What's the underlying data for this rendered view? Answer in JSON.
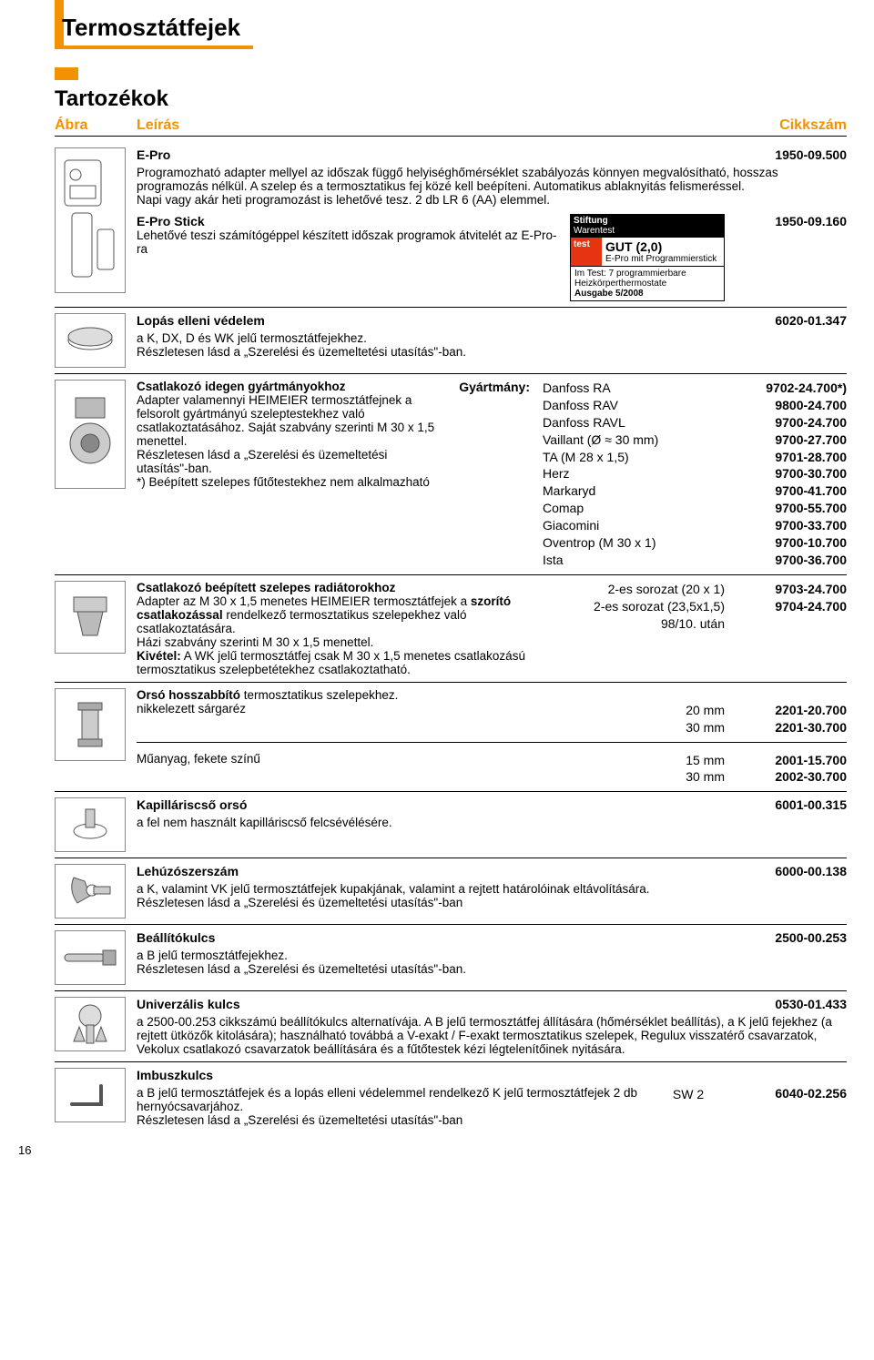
{
  "pageTitle": "Termosztátfejek",
  "sectionTitle": "Tartozékok",
  "head": {
    "abra": "Ábra",
    "leiras": "Leírás",
    "cikk": "Cikkszám"
  },
  "r1": {
    "title": "E-Pro",
    "cikk": "1950-09.500",
    "body": "Programozható adapter mellyel az időszak függő helyiséghőmérséklet szabályozás könnyen megvalósítható, hosszas programozás nélkül. A szelep és a termosztatikus fej közé kell beépíteni. Automatikus ablaknyitás felismeréssel.\nNapi vagy akár heti programozást is lehetővé tesz. 2 db LR 6 (AA) elemmel.",
    "title2": "E-Pro Stick",
    "cikk2": "1950-09.160",
    "body2": "Lehetővé teszi számítógéppel készített időszak programok átvitelét az E-Pro-ra",
    "badge": {
      "l1": "Stiftung",
      "l2": "Warentest",
      "l3": "test",
      "gut": "GUT (2,0)",
      "sub": "E-Pro mit Programmierstick",
      "bot1": "Im Test: 7 programmierbare Heizkörperthermostate",
      "bot2": "Ausgabe 5/2008"
    }
  },
  "r2": {
    "title": "Lopás elleni védelem",
    "cikk": "6020-01.347",
    "body": "a K, DX, D és WK jelű termosztátfejekhez.\nRészletesen lásd a „Szerelési és üzemeltetési utasítás\"-ban."
  },
  "r3": {
    "left": "Csatlakozó idegen gyártmányokhoz\nAdapter valamennyi HEIMEIER termosztátfejnek a felsorolt gyártmányú szeleptestekhez való csatlakoztatásához. Saját szabvány szerinti M 30 x 1,5 menettel.\nRészletesen lásd a „Szerelési és üzemeltetési utasítás\"-ban.\n*) Beépített szelepes fűtőtestekhez nem alkalmazható",
    "gyartmany": "Gyártmány:",
    "brands": [
      "Danfoss RA",
      "Danfoss RAV",
      "Danfoss RAVL",
      "Vaillant (Ø ≈ 30 mm)",
      "TA (M 28 x 1,5)",
      "Herz",
      "Markaryd",
      "Comap",
      "Giacomini",
      "Oventrop (M 30 x 1)",
      "Ista"
    ],
    "codes": [
      "9702-24.700*)",
      "9800-24.700",
      "9700-24.700",
      "9700-27.700",
      "9701-28.700",
      "9700-30.700",
      "9700-41.700",
      "9700-55.700",
      "9700-33.700",
      "9700-10.700",
      "9700-36.700"
    ]
  },
  "r4": {
    "left": "Csatlakozó beépített szelepes radiátorokhoz\nAdapter az M 30 x 1,5 menetes HEIMEIER termosztátfejek a szorító csatlakozással rendelkező termosztatikus szelepekhez való csatlakoztatására.\nHázi szabvány szerinti M 30 x 1,5 menettel.\nKivétel: A WK jelű termosztátfej csak M 30 x 1,5 menetes csatlakozású termosztatikus szelepbetétekhez csatlakoztatható.",
    "mid": [
      "2-es sorozat (20 x 1)",
      "2-es sorozat (23,5x1,5)",
      "98/10. után"
    ],
    "codes": [
      "9703-24.700",
      "9704-24.700"
    ]
  },
  "r5": {
    "title": "Orsó hosszabbító termosztatikus szelepekhez.",
    "l1": "nikkelezett sárgaréz",
    "mid1": [
      "20 mm",
      "30 mm"
    ],
    "codes1": [
      "2201-20.700",
      "2201-30.700"
    ],
    "l2": "Műanyag, fekete színű",
    "mid2": [
      "15 mm",
      "30 mm"
    ],
    "codes2": [
      "2001-15.700",
      "2002-30.700"
    ]
  },
  "r6": {
    "title": "Kapilláriscső orsó",
    "cikk": "6001-00.315",
    "body": "a fel nem használt kapilláriscső felcsévélésére."
  },
  "r7": {
    "title": "Lehúzószerszám",
    "cikk": "6000-00.138",
    "body": "a K, valamint VK jelű termosztátfejek kupakjának, valamint a rejtett határolóinak eltávolítására.\nRészletesen lásd a „Szerelési és üzemeltetési utasítás\"-ban"
  },
  "r8": {
    "title": "Beállítókulcs",
    "cikk": "2500-00.253",
    "body": "a B jelű termosztátfejekhez.\nRészletesen lásd a „Szerelési és üzemeltetési utasítás\"-ban."
  },
  "r9": {
    "title": "Univerzális kulcs",
    "cikk": "0530-01.433",
    "body": "a 2500-00.253 cikkszámú beállítókulcs alternatívája. A B jelű termosztátfej állítására (hőmérséklet beállítás), a K jelű fejekhez (a rejtett ütközők kitolására); használható továbbá a V-exakt / F-exakt termosztatikus szelepek, Regulux visszatérő csavarzatok, Vekolux csatlakozó csavarzatok beállítására és a fűtőtestek kézi légtelenítőinek nyitására."
  },
  "r10": {
    "title": "Imbuszkulcs",
    "body": "a B jelű termosztátfejek és a lopás elleni védelemmel rendelkező K jelű termosztátfejek 2 db hernyócsavarjához.\nRészletesen lásd a „Szerelési és üzemeltetési utasítás\"-ban",
    "mid": "SW 2",
    "cikk": "6040-02.256"
  },
  "pageNumber": "16",
  "colors": {
    "accent": "#f39200",
    "badgeRed": "#e63312"
  }
}
